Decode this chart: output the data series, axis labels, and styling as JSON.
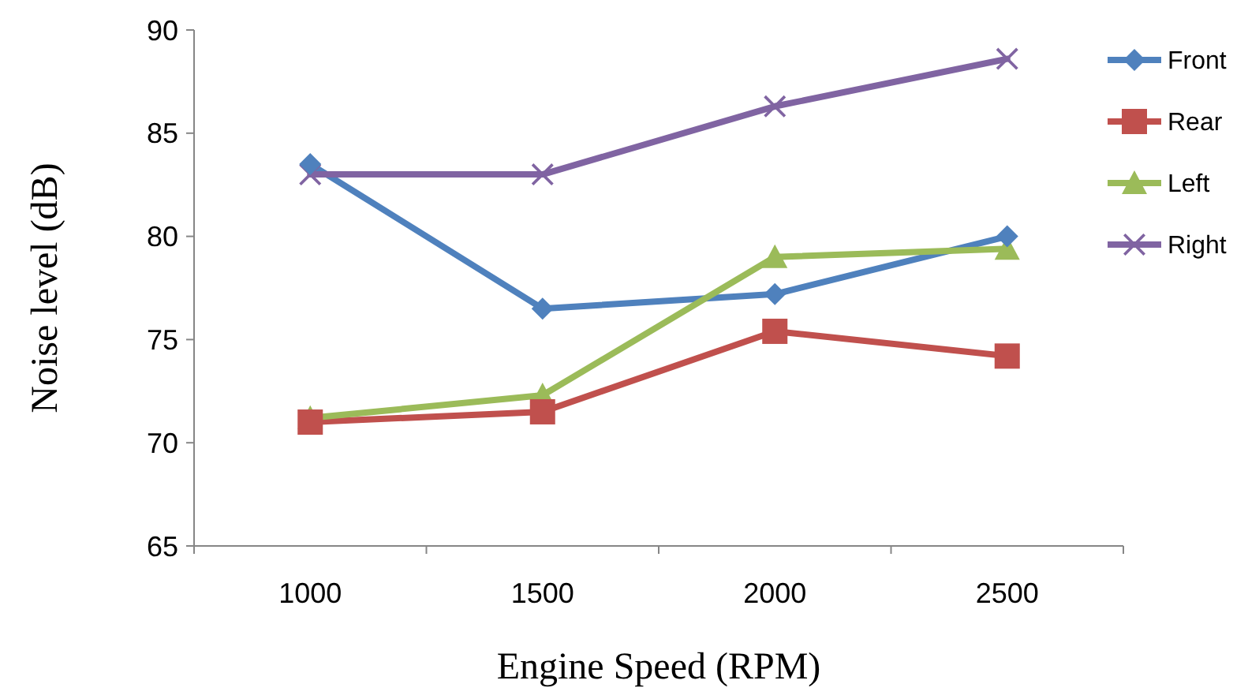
{
  "chart_data": {
    "type": "line",
    "xlabel": "Engine Speed (RPM)",
    "ylabel": "Noise level (dB)",
    "categories": [
      "1000",
      "1500",
      "2000",
      "2500"
    ],
    "ylim": [
      65,
      90
    ],
    "yticks": [
      65,
      70,
      75,
      80,
      85,
      90
    ],
    "grid": false,
    "legend": "right",
    "series": [
      {
        "name": "Front",
        "color": "#4f81bd",
        "marker": "diamond",
        "values": [
          83.5,
          76.5,
          77.2,
          80.0
        ]
      },
      {
        "name": "Rear",
        "color": "#c0504d",
        "marker": "square",
        "values": [
          71.0,
          71.5,
          75.4,
          74.2
        ]
      },
      {
        "name": "Left",
        "color": "#9bbb59",
        "marker": "triangle",
        "values": [
          71.2,
          72.3,
          79.0,
          79.4
        ]
      },
      {
        "name": "Right",
        "color": "#8064a2",
        "marker": "cross",
        "values": [
          83.0,
          83.0,
          86.3,
          88.6
        ]
      }
    ]
  }
}
